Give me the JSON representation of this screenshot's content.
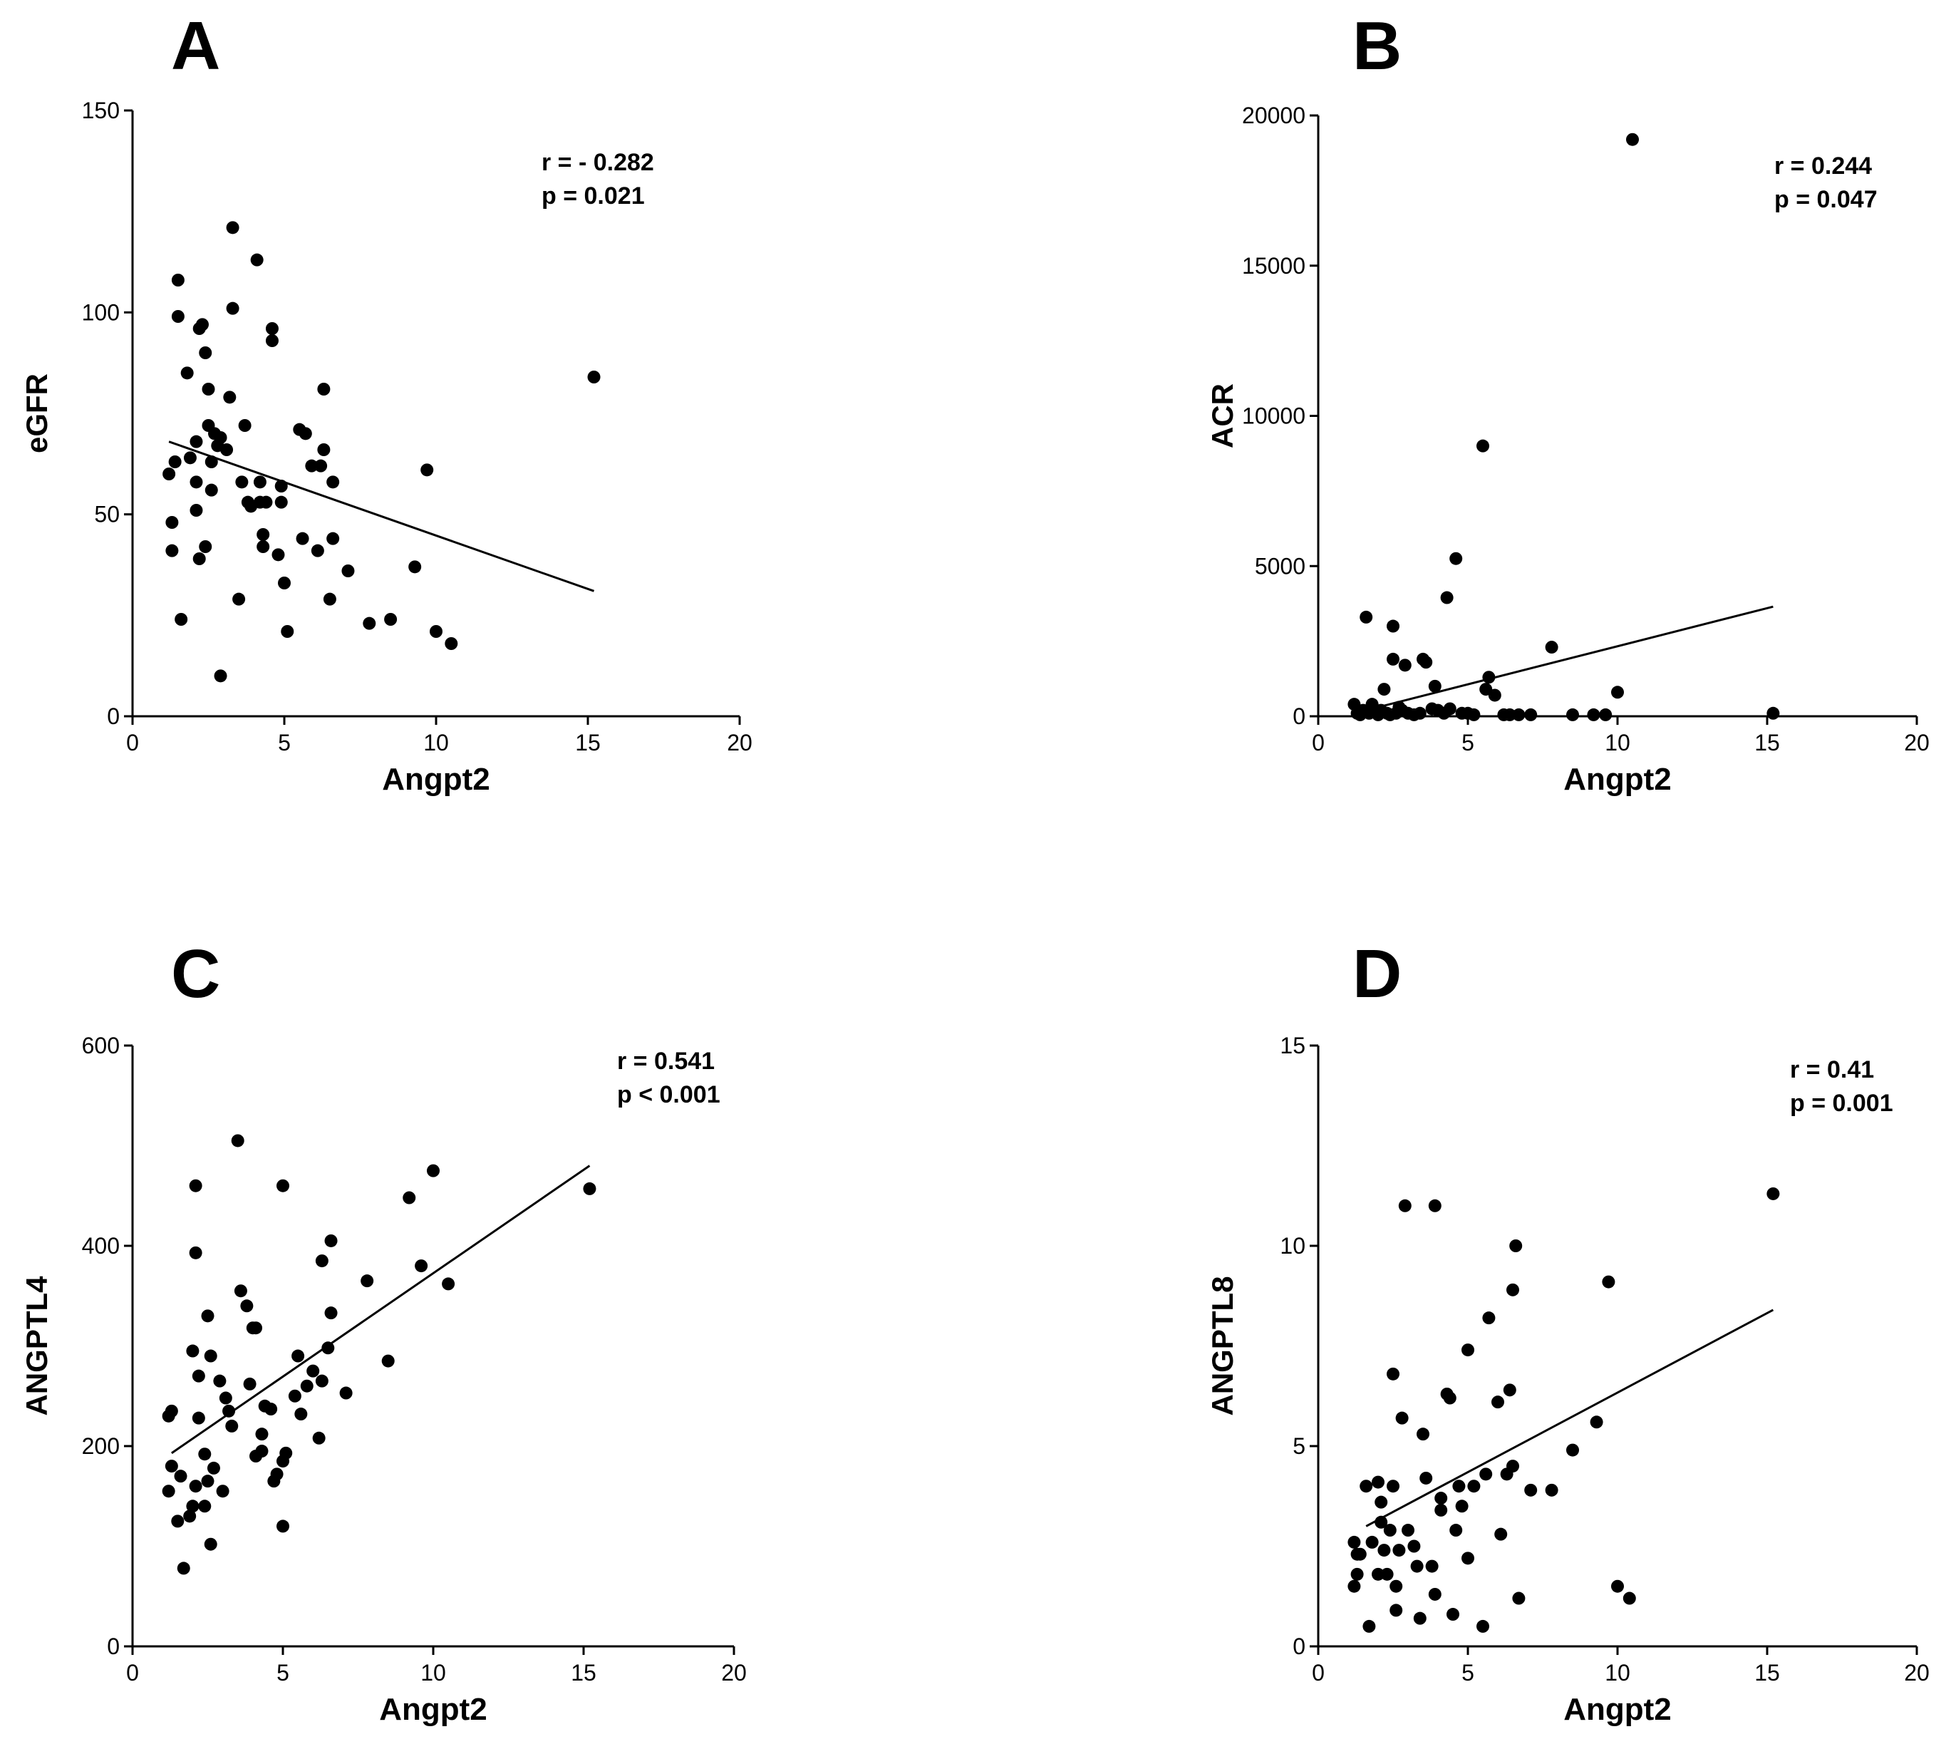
{
  "chart_data": [
    {
      "panel": "A",
      "type": "scatter",
      "xlabel": "Angpt2",
      "ylabel": "eGFR",
      "xlim": [
        0,
        20
      ],
      "ylim": [
        0,
        150
      ],
      "xticks": [
        0,
        5,
        10,
        15,
        20
      ],
      "yticks": [
        0,
        50,
        100,
        150
      ],
      "stats": [
        "r = - 0.282",
        "p = 0.021"
      ],
      "fit_line": {
        "x1": 1.2,
        "y1": 68,
        "x2": 15.2,
        "y2": 31
      },
      "points": [
        [
          1.2,
          60
        ],
        [
          1.3,
          41
        ],
        [
          1.3,
          48
        ],
        [
          1.4,
          63
        ],
        [
          1.5,
          99
        ],
        [
          1.5,
          108
        ],
        [
          1.6,
          24
        ],
        [
          1.8,
          85
        ],
        [
          1.9,
          64
        ],
        [
          2.1,
          58
        ],
        [
          2.1,
          68
        ],
        [
          2.1,
          51
        ],
        [
          2.2,
          96
        ],
        [
          2.3,
          97
        ],
        [
          2.2,
          39
        ],
        [
          2.4,
          90
        ],
        [
          2.4,
          42
        ],
        [
          2.5,
          72
        ],
        [
          2.5,
          81
        ],
        [
          2.6,
          56
        ],
        [
          2.6,
          63
        ],
        [
          2.7,
          70
        ],
        [
          2.8,
          67
        ],
        [
          2.9,
          69
        ],
        [
          2.9,
          10
        ],
        [
          3.1,
          66
        ],
        [
          3.2,
          79
        ],
        [
          3.3,
          121
        ],
        [
          3.3,
          101
        ],
        [
          3.5,
          29
        ],
        [
          3.6,
          58
        ],
        [
          3.7,
          72
        ],
        [
          3.8,
          53
        ],
        [
          3.9,
          52
        ],
        [
          4.1,
          113
        ],
        [
          4.2,
          58
        ],
        [
          4.2,
          53
        ],
        [
          4.3,
          45
        ],
        [
          4.3,
          42
        ],
        [
          4.4,
          53
        ],
        [
          4.6,
          93
        ],
        [
          4.6,
          96
        ],
        [
          4.8,
          40
        ],
        [
          4.9,
          57
        ],
        [
          4.9,
          53
        ],
        [
          5.0,
          33
        ],
        [
          5.1,
          21
        ],
        [
          5.5,
          71
        ],
        [
          5.6,
          44
        ],
        [
          5.7,
          70
        ],
        [
          5.9,
          62
        ],
        [
          6.1,
          41
        ],
        [
          6.2,
          62
        ],
        [
          6.3,
          66
        ],
        [
          6.3,
          81
        ],
        [
          6.5,
          29
        ],
        [
          6.6,
          58
        ],
        [
          6.6,
          44
        ],
        [
          7.1,
          36
        ],
        [
          7.8,
          23
        ],
        [
          8.5,
          24
        ],
        [
          9.3,
          37
        ],
        [
          9.7,
          61
        ],
        [
          10.0,
          21
        ],
        [
          10.5,
          18
        ],
        [
          15.2,
          84
        ]
      ]
    },
    {
      "panel": "B",
      "type": "scatter",
      "xlabel": "Angpt2",
      "ylabel": "ACR",
      "xlim": [
        0,
        20
      ],
      "ylim": [
        0,
        20000
      ],
      "xticks": [
        0,
        5,
        10,
        15,
        20
      ],
      "yticks": [
        0,
        5000,
        10000,
        15000,
        20000
      ],
      "stats": [
        "r = 0.244",
        "p = 0.047"
      ],
      "fit_line": {
        "x1": 1.2,
        "y1": 100,
        "x2": 15.2,
        "y2": 3650
      },
      "points": [
        [
          1.2,
          400
        ],
        [
          1.3,
          100
        ],
        [
          1.4,
          50
        ],
        [
          1.5,
          200
        ],
        [
          1.6,
          3300
        ],
        [
          1.7,
          100
        ],
        [
          1.8,
          400
        ],
        [
          2.0,
          50
        ],
        [
          2.1,
          200
        ],
        [
          2.2,
          900
        ],
        [
          2.3,
          100
        ],
        [
          2.4,
          50
        ],
        [
          2.5,
          1900
        ],
        [
          2.5,
          3000
        ],
        [
          2.6,
          100
        ],
        [
          2.7,
          300
        ],
        [
          2.8,
          200
        ],
        [
          2.9,
          1700
        ],
        [
          3.0,
          100
        ],
        [
          3.2,
          50
        ],
        [
          3.4,
          100
        ],
        [
          3.5,
          1900
        ],
        [
          3.6,
          1800
        ],
        [
          3.8,
          250
        ],
        [
          3.9,
          1000
        ],
        [
          4.0,
          200
        ],
        [
          4.2,
          100
        ],
        [
          4.3,
          3950
        ],
        [
          4.4,
          250
        ],
        [
          4.6,
          5250
        ],
        [
          4.8,
          100
        ],
        [
          5.0,
          100
        ],
        [
          5.2,
          50
        ],
        [
          5.5,
          9000
        ],
        [
          5.6,
          900
        ],
        [
          5.7,
          1300
        ],
        [
          5.9,
          700
        ],
        [
          6.2,
          50
        ],
        [
          6.4,
          50
        ],
        [
          6.7,
          50
        ],
        [
          7.1,
          50
        ],
        [
          7.8,
          2300
        ],
        [
          8.5,
          50
        ],
        [
          9.2,
          50
        ],
        [
          9.6,
          50
        ],
        [
          10.0,
          800
        ],
        [
          10.5,
          19200
        ],
        [
          15.2,
          100
        ]
      ]
    },
    {
      "panel": "C",
      "type": "scatter",
      "xlabel": "Angpt2",
      "ylabel": "ANGPTL4",
      "xlim": [
        0,
        20
      ],
      "ylim": [
        0,
        600
      ],
      "xticks": [
        0,
        5,
        10,
        15,
        20
      ],
      "yticks": [
        0,
        200,
        400,
        600
      ],
      "stats": [
        "r = 0.541",
        "p < 0.001"
      ],
      "fit_line": {
        "x1": 1.3,
        "y1": 193,
        "x2": 15.2,
        "y2": 480
      },
      "points": [
        [
          1.2,
          155
        ],
        [
          1.2,
          230
        ],
        [
          1.3,
          235
        ],
        [
          1.3,
          180
        ],
        [
          1.5,
          125
        ],
        [
          1.6,
          170
        ],
        [
          1.7,
          78
        ],
        [
          1.9,
          130
        ],
        [
          2.0,
          295
        ],
        [
          2.0,
          140
        ],
        [
          2.1,
          393
        ],
        [
          2.1,
          460
        ],
        [
          2.1,
          160
        ],
        [
          2.2,
          228
        ],
        [
          2.2,
          270
        ],
        [
          2.4,
          192
        ],
        [
          2.4,
          140
        ],
        [
          2.5,
          330
        ],
        [
          2.5,
          165
        ],
        [
          2.6,
          290
        ],
        [
          2.6,
          102
        ],
        [
          2.7,
          178
        ],
        [
          2.9,
          265
        ],
        [
          3.0,
          155
        ],
        [
          3.1,
          248
        ],
        [
          3.2,
          235
        ],
        [
          3.3,
          220
        ],
        [
          3.5,
          505
        ],
        [
          3.6,
          355
        ],
        [
          3.8,
          340
        ],
        [
          3.9,
          262
        ],
        [
          4.0,
          318
        ],
        [
          4.1,
          318
        ],
        [
          4.1,
          190
        ],
        [
          4.3,
          212
        ],
        [
          4.3,
          195
        ],
        [
          4.4,
          240
        ],
        [
          4.6,
          237
        ],
        [
          4.7,
          165
        ],
        [
          4.8,
          172
        ],
        [
          5.0,
          120
        ],
        [
          5.0,
          185
        ],
        [
          5.0,
          460
        ],
        [
          5.1,
          193
        ],
        [
          5.4,
          250
        ],
        [
          5.5,
          290
        ],
        [
          5.6,
          232
        ],
        [
          5.8,
          260
        ],
        [
          6.0,
          275
        ],
        [
          6.2,
          208
        ],
        [
          6.3,
          265
        ],
        [
          6.3,
          385
        ],
        [
          6.5,
          298
        ],
        [
          6.6,
          405
        ],
        [
          6.6,
          333
        ],
        [
          7.1,
          253
        ],
        [
          7.8,
          365
        ],
        [
          8.5,
          285
        ],
        [
          9.2,
          448
        ],
        [
          9.6,
          380
        ],
        [
          10.0,
          475
        ],
        [
          10.5,
          362
        ],
        [
          15.2,
          457
        ]
      ]
    },
    {
      "panel": "D",
      "type": "scatter",
      "xlabel": "Angpt2",
      "ylabel": "ANGPTL8",
      "xlim": [
        0,
        20
      ],
      "ylim": [
        0,
        15
      ],
      "xticks": [
        0,
        5,
        10,
        15,
        20
      ],
      "yticks": [
        0,
        5,
        10,
        15
      ],
      "stats": [
        "r = 0.41",
        "p = 0.001"
      ],
      "fit_line": {
        "x1": 1.6,
        "y1": 3.0,
        "x2": 15.2,
        "y2": 8.4
      },
      "points": [
        [
          1.2,
          2.6
        ],
        [
          1.2,
          1.5
        ],
        [
          1.3,
          1.8
        ],
        [
          1.3,
          2.3
        ],
        [
          1.4,
          2.3
        ],
        [
          1.6,
          4.0
        ],
        [
          1.7,
          0.5
        ],
        [
          1.8,
          2.6
        ],
        [
          2.0,
          4.1
        ],
        [
          2.0,
          1.8
        ],
        [
          2.1,
          3.1
        ],
        [
          2.1,
          3.6
        ],
        [
          2.2,
          2.4
        ],
        [
          2.3,
          1.8
        ],
        [
          2.4,
          2.9
        ],
        [
          2.5,
          4.0
        ],
        [
          2.5,
          6.8
        ],
        [
          2.6,
          1.5
        ],
        [
          2.6,
          0.9
        ],
        [
          2.7,
          2.4
        ],
        [
          2.8,
          5.7
        ],
        [
          2.9,
          11.0
        ],
        [
          3.0,
          2.9
        ],
        [
          3.2,
          2.5
        ],
        [
          3.3,
          2.0
        ],
        [
          3.4,
          0.7
        ],
        [
          3.5,
          5.3
        ],
        [
          3.6,
          4.2
        ],
        [
          3.8,
          2.0
        ],
        [
          3.9,
          11.0
        ],
        [
          3.9,
          1.3
        ],
        [
          4.1,
          3.4
        ],
        [
          4.1,
          3.7
        ],
        [
          4.3,
          6.3
        ],
        [
          4.4,
          6.2
        ],
        [
          4.5,
          0.8
        ],
        [
          4.6,
          2.9
        ],
        [
          4.7,
          4.0
        ],
        [
          4.8,
          3.5
        ],
        [
          5.0,
          7.4
        ],
        [
          5.0,
          2.2
        ],
        [
          5.2,
          4.0
        ],
        [
          5.5,
          0.5
        ],
        [
          5.6,
          4.3
        ],
        [
          5.7,
          8.2
        ],
        [
          6.0,
          6.1
        ],
        [
          6.1,
          2.8
        ],
        [
          6.3,
          4.3
        ],
        [
          6.4,
          6.4
        ],
        [
          6.5,
          4.5
        ],
        [
          6.5,
          8.9
        ],
        [
          6.6,
          10.0
        ],
        [
          6.7,
          1.2
        ],
        [
          7.1,
          3.9
        ],
        [
          7.8,
          3.9
        ],
        [
          8.5,
          4.9
        ],
        [
          9.3,
          5.6
        ],
        [
          9.7,
          9.1
        ],
        [
          10.0,
          1.5
        ],
        [
          10.4,
          1.2
        ],
        [
          15.2,
          11.3
        ]
      ]
    }
  ]
}
